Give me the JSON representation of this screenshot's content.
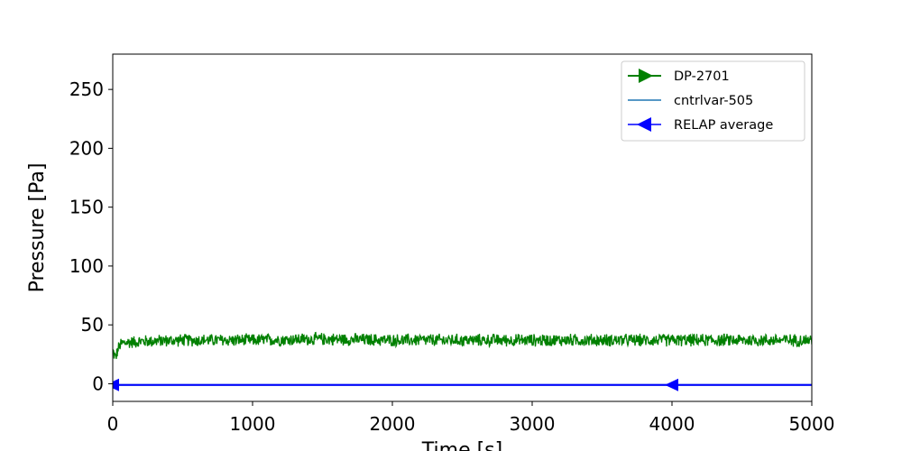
{
  "chart_data": {
    "type": "line",
    "title": "",
    "xlabel": "Time [s]",
    "ylabel": "Pressure [Pa]",
    "xlim": [
      0,
      5000
    ],
    "ylim": [
      -15,
      280
    ],
    "xticks": [
      0,
      1000,
      2000,
      3000,
      4000,
      5000
    ],
    "yticks": [
      0,
      50,
      100,
      150,
      200,
      250
    ],
    "grid": false,
    "legend_position": "top-right",
    "series": [
      {
        "name": "DP-2701",
        "color": "#008000",
        "marker": "triangle-right",
        "style": "noisy band",
        "x": [
          0,
          20,
          40,
          60,
          100,
          200,
          500,
          1000,
          1500,
          2000,
          2500,
          3000,
          3500,
          4000,
          4500,
          5000
        ],
        "y": [
          28,
          22,
          30,
          34,
          35,
          36,
          37,
          37,
          38,
          37,
          37,
          37,
          37,
          37,
          37,
          37
        ],
        "noise_amplitude": 6
      },
      {
        "name": "cntrlvar-505",
        "color": "#1f77b4",
        "marker": "none",
        "x": [
          0,
          5000
        ],
        "y": [
          -1,
          -1
        ]
      },
      {
        "name": "RELAP average",
        "color": "#0000ff",
        "marker": "triangle-left",
        "marker_x": [
          0,
          4000
        ],
        "x": [
          0,
          5000
        ],
        "y": [
          -1,
          -1
        ]
      }
    ]
  }
}
